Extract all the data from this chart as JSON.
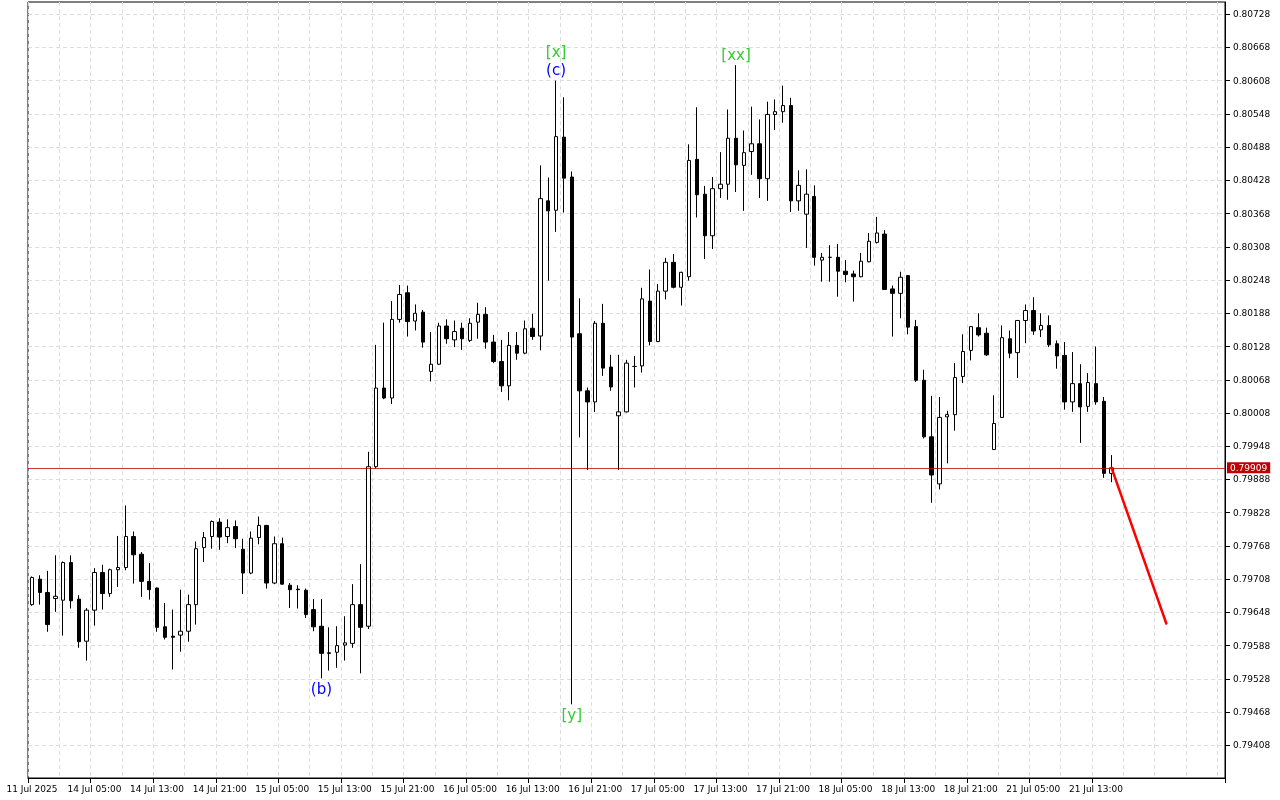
{
  "chart_data": {
    "type": "candlestick",
    "categories": [
      "11 Jul 2025",
      null,
      null,
      null,
      null,
      null,
      null,
      null,
      "14 Jul 05:00",
      null,
      null,
      null,
      null,
      null,
      null,
      null,
      "14 Jul 13:00",
      null,
      null,
      null,
      null,
      null,
      null,
      null,
      "14 Jul 21:00",
      null,
      null,
      null,
      null,
      null,
      null,
      null,
      "15 Jul 05:00",
      null,
      null,
      null,
      null,
      null,
      null,
      null,
      "15 Jul 13:00",
      null,
      null,
      null,
      null,
      null,
      null,
      null,
      "15 Jul 21:00",
      null,
      null,
      null,
      null,
      null,
      null,
      null,
      "16 Jul 05:00",
      null,
      null,
      null,
      null,
      null,
      null,
      null,
      "16 Jul 13:00",
      null,
      null,
      null,
      null,
      null,
      null,
      null,
      "16 Jul 21:00",
      null,
      null,
      null,
      null,
      null,
      null,
      null,
      "17 Jul 05:00",
      null,
      null,
      null,
      null,
      null,
      null,
      null,
      "17 Jul 13:00",
      null,
      null,
      null,
      null,
      null,
      null,
      null,
      "17 Jul 21:00",
      null,
      null,
      null,
      null,
      null,
      null,
      null,
      "18 Jul 05:00",
      null,
      null,
      null,
      null,
      null,
      null,
      null,
      "18 Jul 13:00",
      null,
      null,
      null,
      null,
      null,
      null,
      null,
      "18 Jul 21:00",
      null,
      null,
      null,
      null,
      null,
      null,
      null,
      "21 Jul 05:00",
      null,
      null,
      null,
      null,
      null,
      null,
      null,
      "21 Jul 13:00",
      null,
      null,
      null,
      null,
      null,
      null,
      null,
      null,
      null,
      null,
      null,
      null,
      null,
      null,
      null,
      null
    ],
    "series": [
      {
        "type": "candlestick",
        "color": "#000000",
        "ohlc": [
          [
            0.79662,
            0.79713,
            0.7966,
            0.79711
          ],
          [
            0.79708,
            0.79715,
            0.79662,
            0.79684
          ],
          [
            0.79684,
            0.79723,
            0.79613,
            0.79626
          ],
          [
            0.79673,
            0.79751,
            0.79649,
            0.79677
          ],
          [
            0.7967,
            0.7974,
            0.79606,
            0.79738
          ],
          [
            0.79738,
            0.79751,
            0.79655,
            0.79669
          ],
          [
            0.79672,
            0.79679,
            0.79584,
            0.79595
          ],
          [
            0.79596,
            0.79656,
            0.79561,
            0.79652
          ],
          [
            0.79652,
            0.79728,
            0.79624,
            0.7972
          ],
          [
            0.7972,
            0.79734,
            0.79653,
            0.79682
          ],
          [
            0.79682,
            0.79727,
            0.79676,
            0.79725
          ],
          [
            0.79725,
            0.79786,
            0.79694,
            0.79729
          ],
          [
            0.79729,
            0.79841,
            0.79724,
            0.79785
          ],
          [
            0.79785,
            0.79794,
            0.797,
            0.79752
          ],
          [
            0.79753,
            0.79757,
            0.79676,
            0.79704
          ],
          [
            0.79704,
            0.79737,
            0.79671,
            0.79689
          ],
          [
            0.79692,
            0.79693,
            0.79613,
            0.79621
          ],
          [
            0.79622,
            0.79665,
            0.79599,
            0.79603
          ],
          [
            0.79605,
            0.79653,
            0.79545,
            0.79603
          ],
          [
            0.79607,
            0.79689,
            0.79577,
            0.79614
          ],
          [
            0.79614,
            0.7968,
            0.79595,
            0.79662
          ],
          [
            0.79662,
            0.79776,
            0.79626,
            0.79763
          ],
          [
            0.79765,
            0.79793,
            0.79739,
            0.79783
          ],
          [
            0.79785,
            0.79814,
            0.79763,
            0.79812
          ],
          [
            0.79811,
            0.79818,
            0.79761,
            0.79784
          ],
          [
            0.79785,
            0.79816,
            0.79773,
            0.79801
          ],
          [
            0.79803,
            0.79814,
            0.79764,
            0.79781
          ],
          [
            0.79762,
            0.79781,
            0.79681,
            0.79719
          ],
          [
            0.79719,
            0.79794,
            0.79717,
            0.79782
          ],
          [
            0.79783,
            0.79821,
            0.79771,
            0.79805
          ],
          [
            0.79805,
            0.79806,
            0.79691,
            0.79701
          ],
          [
            0.79701,
            0.79785,
            0.79699,
            0.79772
          ],
          [
            0.79772,
            0.79783,
            0.79698,
            0.79699
          ],
          [
            0.79697,
            0.79701,
            0.79656,
            0.79689
          ],
          [
            0.7969,
            0.79697,
            0.79655,
            0.79689
          ],
          [
            0.79688,
            0.79691,
            0.79638,
            0.79644
          ],
          [
            0.79653,
            0.79672,
            0.79614,
            0.79622
          ],
          [
            0.79623,
            0.79672,
            0.79529,
            0.79574
          ],
          [
            0.79575,
            0.79621,
            0.79543,
            0.79574
          ],
          [
            0.79576,
            0.79623,
            0.79548,
            0.79588
          ],
          [
            0.79589,
            0.79641,
            0.79561,
            0.79593
          ],
          [
            0.79592,
            0.79699,
            0.79584,
            0.79662
          ],
          [
            0.79662,
            0.79735,
            0.79538,
            0.79621
          ],
          [
            0.79623,
            0.79938,
            0.79618,
            0.79911
          ],
          [
            0.79911,
            0.80131,
            0.79908,
            0.80053
          ],
          [
            0.80053,
            0.80171,
            0.80033,
            0.80035
          ],
          [
            0.80035,
            0.8021,
            0.80024,
            0.80177
          ],
          [
            0.80177,
            0.80239,
            0.80171,
            0.80222
          ],
          [
            0.80225,
            0.80238,
            0.80146,
            0.80173
          ],
          [
            0.80174,
            0.80204,
            0.80157,
            0.80188
          ],
          [
            0.8019,
            0.80194,
            0.80126,
            0.80136
          ],
          [
            0.80083,
            0.80154,
            0.80065,
            0.80096
          ],
          [
            0.80096,
            0.80171,
            0.80095,
            0.80165
          ],
          [
            0.80165,
            0.80177,
            0.80133,
            0.80142
          ],
          [
            0.8014,
            0.80175,
            0.80127,
            0.80155
          ],
          [
            0.80161,
            0.80171,
            0.80122,
            0.80142
          ],
          [
            0.80139,
            0.80179,
            0.80136,
            0.8017
          ],
          [
            0.80172,
            0.80207,
            0.80142,
            0.80186
          ],
          [
            0.80186,
            0.80199,
            0.80124,
            0.80136
          ],
          [
            0.80136,
            0.80149,
            0.80098,
            0.80101
          ],
          [
            0.80101,
            0.8014,
            0.80046,
            0.80057
          ],
          [
            0.80057,
            0.80154,
            0.80031,
            0.8013
          ],
          [
            0.8013,
            0.80154,
            0.80104,
            0.80116
          ],
          [
            0.80116,
            0.80175,
            0.80114,
            0.8016
          ],
          [
            0.80161,
            0.80187,
            0.8014,
            0.80146
          ],
          [
            0.80147,
            0.80455,
            0.80121,
            0.80395
          ],
          [
            0.80391,
            0.80433,
            0.80247,
            0.80373
          ],
          [
            0.80374,
            0.80608,
            0.80335,
            0.80507
          ],
          [
            0.80506,
            0.80578,
            0.8037,
            0.80432
          ],
          [
            0.80434,
            0.80444,
            0.79482,
            0.80145
          ],
          [
            0.80151,
            0.80215,
            0.79964,
            0.80048
          ],
          [
            0.80048,
            0.80054,
            0.79905,
            0.80028
          ],
          [
            0.80028,
            0.80174,
            0.8001,
            0.8017
          ],
          [
            0.8017,
            0.80205,
            0.80075,
            0.80089
          ],
          [
            0.80091,
            0.80113,
            0.80048,
            0.80055
          ],
          [
            0.80003,
            0.80113,
            0.79905,
            0.8001
          ],
          [
            0.8001,
            0.80104,
            0.80009,
            0.80098
          ],
          [
            0.80092,
            0.80111,
            0.80054,
            0.80092
          ],
          [
            0.80093,
            0.80234,
            0.80081,
            0.80214
          ],
          [
            0.8021,
            0.80267,
            0.8013,
            0.80137
          ],
          [
            0.80137,
            0.80241,
            0.80136,
            0.80228
          ],
          [
            0.80228,
            0.80288,
            0.80213,
            0.8028
          ],
          [
            0.8028,
            0.80295,
            0.80233,
            0.80235
          ],
          [
            0.80235,
            0.80263,
            0.80202,
            0.80262
          ],
          [
            0.80254,
            0.80493,
            0.80247,
            0.80464
          ],
          [
            0.80466,
            0.8056,
            0.80361,
            0.80402
          ],
          [
            0.80403,
            0.80418,
            0.80286,
            0.80328
          ],
          [
            0.80328,
            0.80434,
            0.80304,
            0.80413
          ],
          [
            0.80413,
            0.80479,
            0.80396,
            0.80421
          ],
          [
            0.80421,
            0.80556,
            0.80393,
            0.80504
          ],
          [
            0.80504,
            0.80636,
            0.80407,
            0.80456
          ],
          [
            0.80455,
            0.80518,
            0.80373,
            0.80478
          ],
          [
            0.8048,
            0.80561,
            0.80438,
            0.80494
          ],
          [
            0.80494,
            0.80538,
            0.80396,
            0.80431
          ],
          [
            0.80431,
            0.8057,
            0.80391,
            0.80547
          ],
          [
            0.80547,
            0.80574,
            0.80519,
            0.80552
          ],
          [
            0.80552,
            0.80599,
            0.80532,
            0.80563
          ],
          [
            0.80563,
            0.80577,
            0.80371,
            0.80391
          ],
          [
            0.80391,
            0.80446,
            0.80373,
            0.80419
          ],
          [
            0.80367,
            0.80448,
            0.80306,
            0.80403
          ],
          [
            0.80399,
            0.80419,
            0.80274,
            0.80289
          ],
          [
            0.80284,
            0.80297,
            0.80245,
            0.80289
          ],
          [
            0.80289,
            0.80311,
            0.80245,
            0.80289
          ],
          [
            0.80289,
            0.80313,
            0.80218,
            0.80264
          ],
          [
            0.80264,
            0.80284,
            0.80244,
            0.80258
          ],
          [
            0.80259,
            0.80265,
            0.80209,
            0.80254
          ],
          [
            0.80254,
            0.80297,
            0.80253,
            0.80282
          ],
          [
            0.80281,
            0.80333,
            0.8028,
            0.80318
          ],
          [
            0.80316,
            0.80362,
            0.80314,
            0.80333
          ],
          [
            0.80331,
            0.80338,
            0.8023,
            0.80231
          ],
          [
            0.80232,
            0.80238,
            0.80146,
            0.80224
          ],
          [
            0.80224,
            0.80263,
            0.80179,
            0.80253
          ],
          [
            0.80256,
            0.80257,
            0.8015,
            0.80163
          ],
          [
            0.80164,
            0.80176,
            0.80064,
            0.80067
          ],
          [
            0.80067,
            0.80086,
            0.79962,
            0.79965
          ],
          [
            0.79965,
            0.80039,
            0.79846,
            0.79896
          ],
          [
            0.7988,
            0.80037,
            0.7987,
            0.8
          ],
          [
            0.80001,
            0.80012,
            0.79917,
            0.80005
          ],
          [
            0.80005,
            0.80098,
            0.79976,
            0.80072
          ],
          [
            0.80074,
            0.8015,
            0.80062,
            0.80119
          ],
          [
            0.80121,
            0.80165,
            0.80103,
            0.80164
          ],
          [
            0.80162,
            0.80188,
            0.80146,
            0.80149
          ],
          [
            0.80152,
            0.80162,
            0.80111,
            0.80113
          ],
          [
            0.79942,
            0.8004,
            0.79941,
            0.79989
          ],
          [
            0.8,
            0.80166,
            0.79999,
            0.80144
          ],
          [
            0.80142,
            0.80157,
            0.80107,
            0.80116
          ],
          [
            0.80117,
            0.80176,
            0.80071,
            0.80175
          ],
          [
            0.80175,
            0.80204,
            0.80134,
            0.80193
          ],
          [
            0.80193,
            0.80217,
            0.80149,
            0.80156
          ],
          [
            0.80158,
            0.80188,
            0.80145,
            0.80166
          ],
          [
            0.80166,
            0.80184,
            0.80127,
            0.80131
          ],
          [
            0.80133,
            0.80139,
            0.80088,
            0.80111
          ],
          [
            0.80112,
            0.80136,
            0.80014,
            0.80028
          ],
          [
            0.80028,
            0.80118,
            0.8001,
            0.80061
          ],
          [
            0.80061,
            0.80096,
            0.79954,
            0.80019
          ],
          [
            0.8002,
            0.8008,
            0.8001,
            0.80063
          ],
          [
            0.80061,
            0.80128,
            0.80023,
            0.80028
          ],
          [
            0.80029,
            0.80037,
            0.79891,
            0.79899
          ],
          [
            0.79899,
            0.79932,
            0.79883,
            0.79909
          ],
          null,
          null,
          null,
          null,
          null,
          null,
          null,
          null,
          null,
          null,
          null,
          null,
          null,
          null
        ]
      },
      {
        "type": "line",
        "color": "#ff0000",
        "values": [
          null,
          null,
          null,
          null,
          null,
          null,
          null,
          null,
          null,
          null,
          null,
          null,
          null,
          null,
          null,
          null,
          null,
          null,
          null,
          null,
          null,
          null,
          null,
          null,
          null,
          null,
          null,
          null,
          null,
          null,
          null,
          null,
          null,
          null,
          null,
          null,
          null,
          null,
          null,
          null,
          null,
          null,
          null,
          null,
          null,
          null,
          null,
          null,
          null,
          null,
          null,
          null,
          null,
          null,
          null,
          null,
          null,
          null,
          null,
          null,
          null,
          null,
          null,
          null,
          null,
          null,
          null,
          null,
          null,
          null,
          null,
          null,
          null,
          null,
          null,
          null,
          null,
          null,
          null,
          null,
          null,
          null,
          null,
          null,
          null,
          null,
          null,
          null,
          null,
          null,
          null,
          null,
          null,
          null,
          null,
          null,
          null,
          null,
          null,
          null,
          null,
          null,
          null,
          null,
          null,
          null,
          null,
          null,
          null,
          null,
          null,
          null,
          null,
          null,
          null,
          null,
          null,
          null,
          null,
          null,
          null,
          null,
          null,
          null,
          null,
          null,
          null,
          null,
          null,
          null,
          null,
          null,
          null,
          null,
          null,
          null,
          null,
          null,
          0.79909,
          null,
          null,
          null,
          null,
          null,
          null,
          0.79628,
          null,
          null,
          null,
          null,
          null,
          null,
          null
        ]
      }
    ],
    "ylim": [
      0.79349,
      0.8075
    ],
    "yticks": [
      0.79408,
      0.79468,
      0.79528,
      0.79588,
      0.79648,
      0.79708,
      0.79768,
      0.79828,
      0.79888,
      0.79948,
      0.80008,
      0.80068,
      0.80128,
      0.80188,
      0.80248,
      0.80308,
      0.80368,
      0.80428,
      0.80488,
      0.80548,
      0.80608,
      0.80668,
      0.80728
    ],
    "ref_lines": [
      {
        "axis": "y",
        "value": 0.79909,
        "label": "0.79909",
        "color": "#c00000"
      }
    ],
    "annotations": [
      {
        "text": "[x]",
        "y": 0.80608
      },
      {
        "text": "(c)",
        "y": 0.80608
      },
      {
        "text": "[xx]",
        "y": 0.80636
      },
      {
        "text": "[y]",
        "y": 0.79482
      },
      {
        "text": "(b)",
        "y": 0.79529
      }
    ],
    "grid": true,
    "marker": "none"
  }
}
